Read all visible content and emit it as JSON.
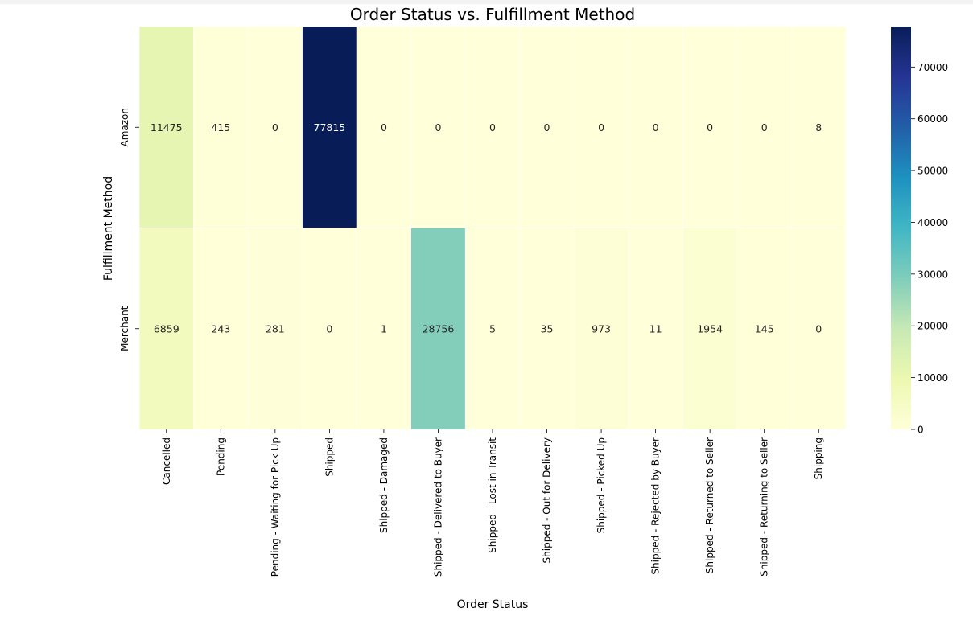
{
  "chart_data": {
    "type": "heatmap",
    "title": "Order Status vs. Fulfillment Method",
    "xlabel": "Order Status",
    "ylabel": "Fulfillment Method",
    "x_categories": [
      "Cancelled",
      "Pending",
      "Pending - Waiting for Pick Up",
      "Shipped",
      "Shipped - Damaged",
      "Shipped - Delivered to Buyer",
      "Shipped - Lost in Transit",
      "Shipped - Out for Delivery",
      "Shipped - Picked Up",
      "Shipped - Rejected by Buyer",
      "Shipped - Returned to Seller",
      "Shipped - Returning to Seller",
      "Shipping"
    ],
    "y_categories": [
      "Amazon",
      "Merchant"
    ],
    "values": [
      [
        11475,
        415,
        0,
        77815,
        0,
        0,
        0,
        0,
        0,
        0,
        0,
        0,
        8
      ],
      [
        6859,
        243,
        281,
        0,
        1,
        28756,
        5,
        35,
        973,
        11,
        1954,
        145,
        0
      ]
    ],
    "colormap": "YlGnBu",
    "colorbar": {
      "min": 0,
      "max": 77815,
      "ticks": [
        "0",
        "10000",
        "20000",
        "30000",
        "40000",
        "50000",
        "60000",
        "70000"
      ]
    }
  }
}
